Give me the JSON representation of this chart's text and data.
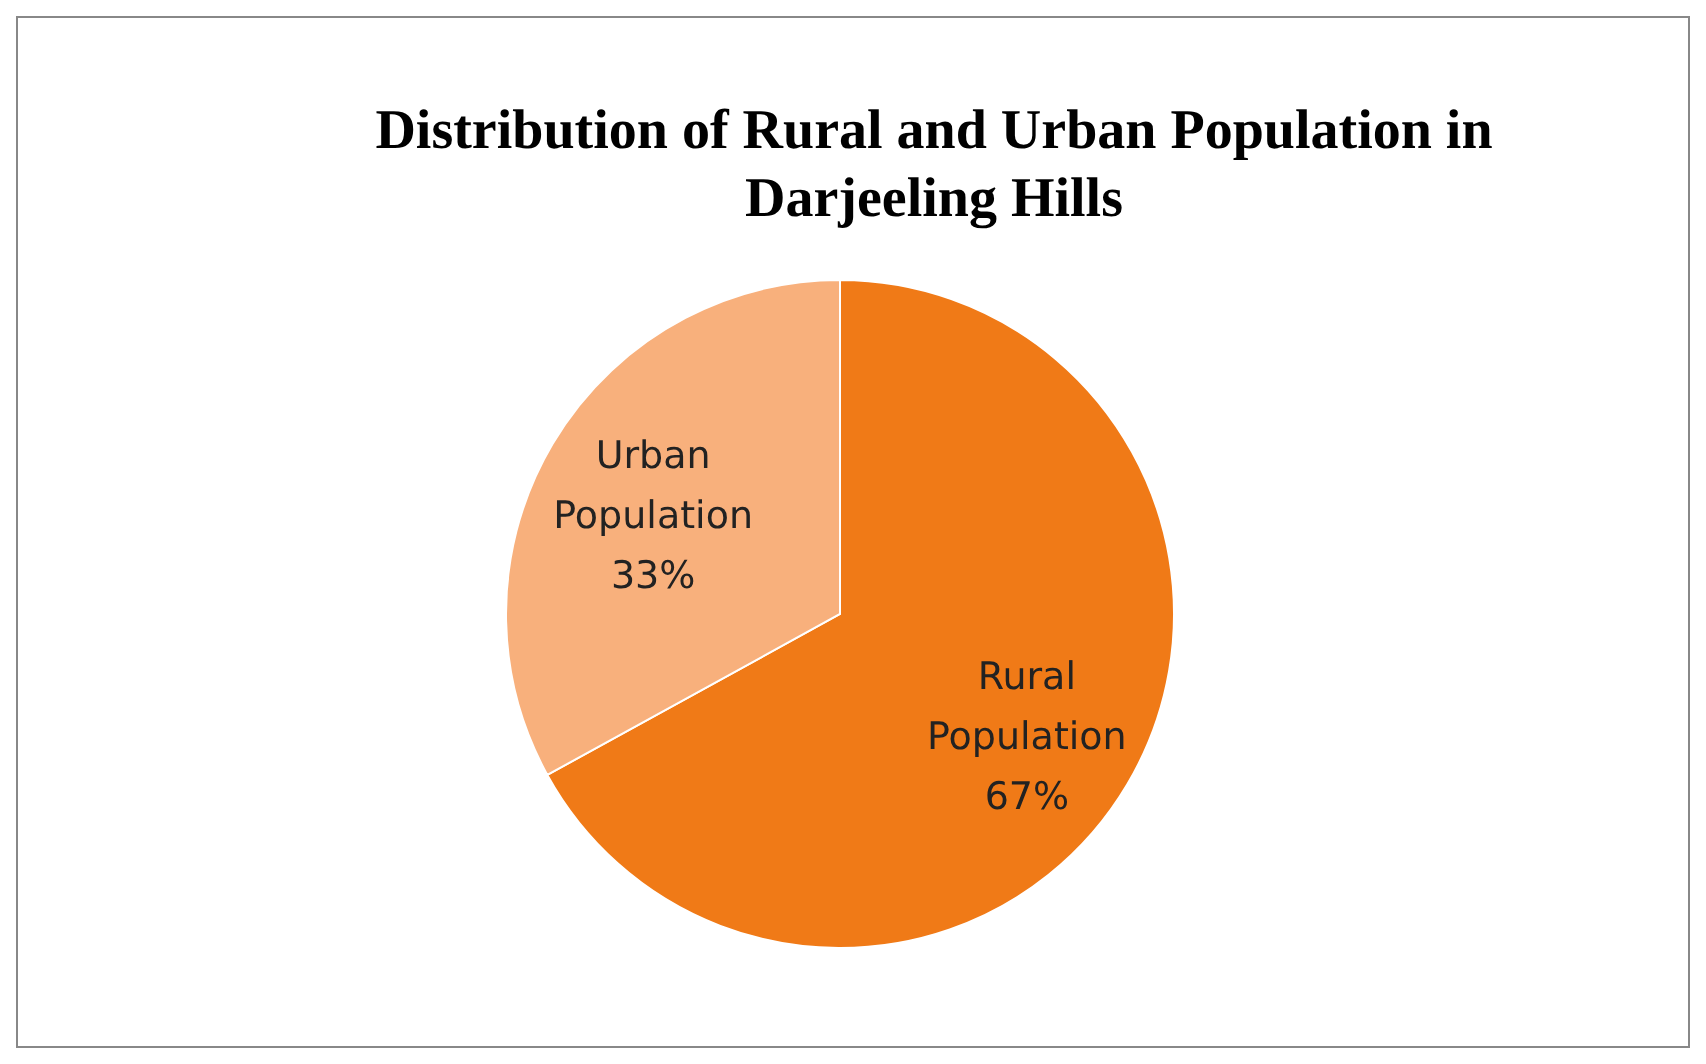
{
  "chart_data": {
    "type": "pie",
    "title": "Distribution of Rural and Urban Population in Darjeeling Hills",
    "categories": [
      "Rural Population",
      "Urban Population"
    ],
    "values": [
      67,
      33
    ],
    "colors": [
      "#f07a17",
      "#f8b07c"
    ],
    "value_labels": [
      "67%",
      "33%"
    ]
  }
}
